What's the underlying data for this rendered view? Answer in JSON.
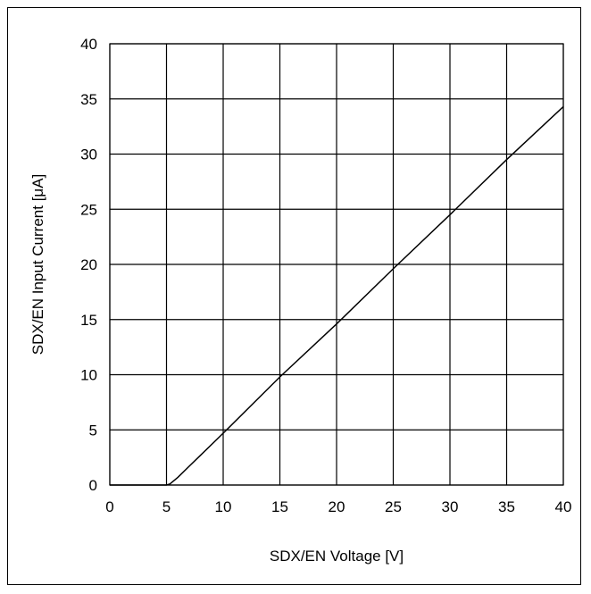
{
  "chart_data": {
    "type": "line",
    "title": "",
    "xlabel": "SDX/EN Voltage [V]",
    "ylabel": "SDX/EN Input Current [μA]",
    "xlim": [
      0,
      40
    ],
    "ylim": [
      0,
      40
    ],
    "x_ticks": [
      "0",
      "5",
      "10",
      "15",
      "20",
      "25",
      "30",
      "35",
      "40"
    ],
    "y_ticks": [
      "0",
      "5",
      "10",
      "15",
      "20",
      "25",
      "30",
      "35",
      "40"
    ],
    "grid": true,
    "legend": "none",
    "series": [
      {
        "x": [
          0,
          5,
          5.3,
          6,
          7,
          8,
          10,
          15,
          20,
          25,
          30,
          35,
          40
        ],
        "y": [
          0,
          0,
          0.1,
          0.7,
          1.7,
          2.7,
          4.7,
          9.8,
          14.6,
          19.6,
          24.5,
          29.5,
          34.3
        ]
      }
    ],
    "colors": {
      "line": "#000000",
      "grid": "#000000"
    }
  }
}
